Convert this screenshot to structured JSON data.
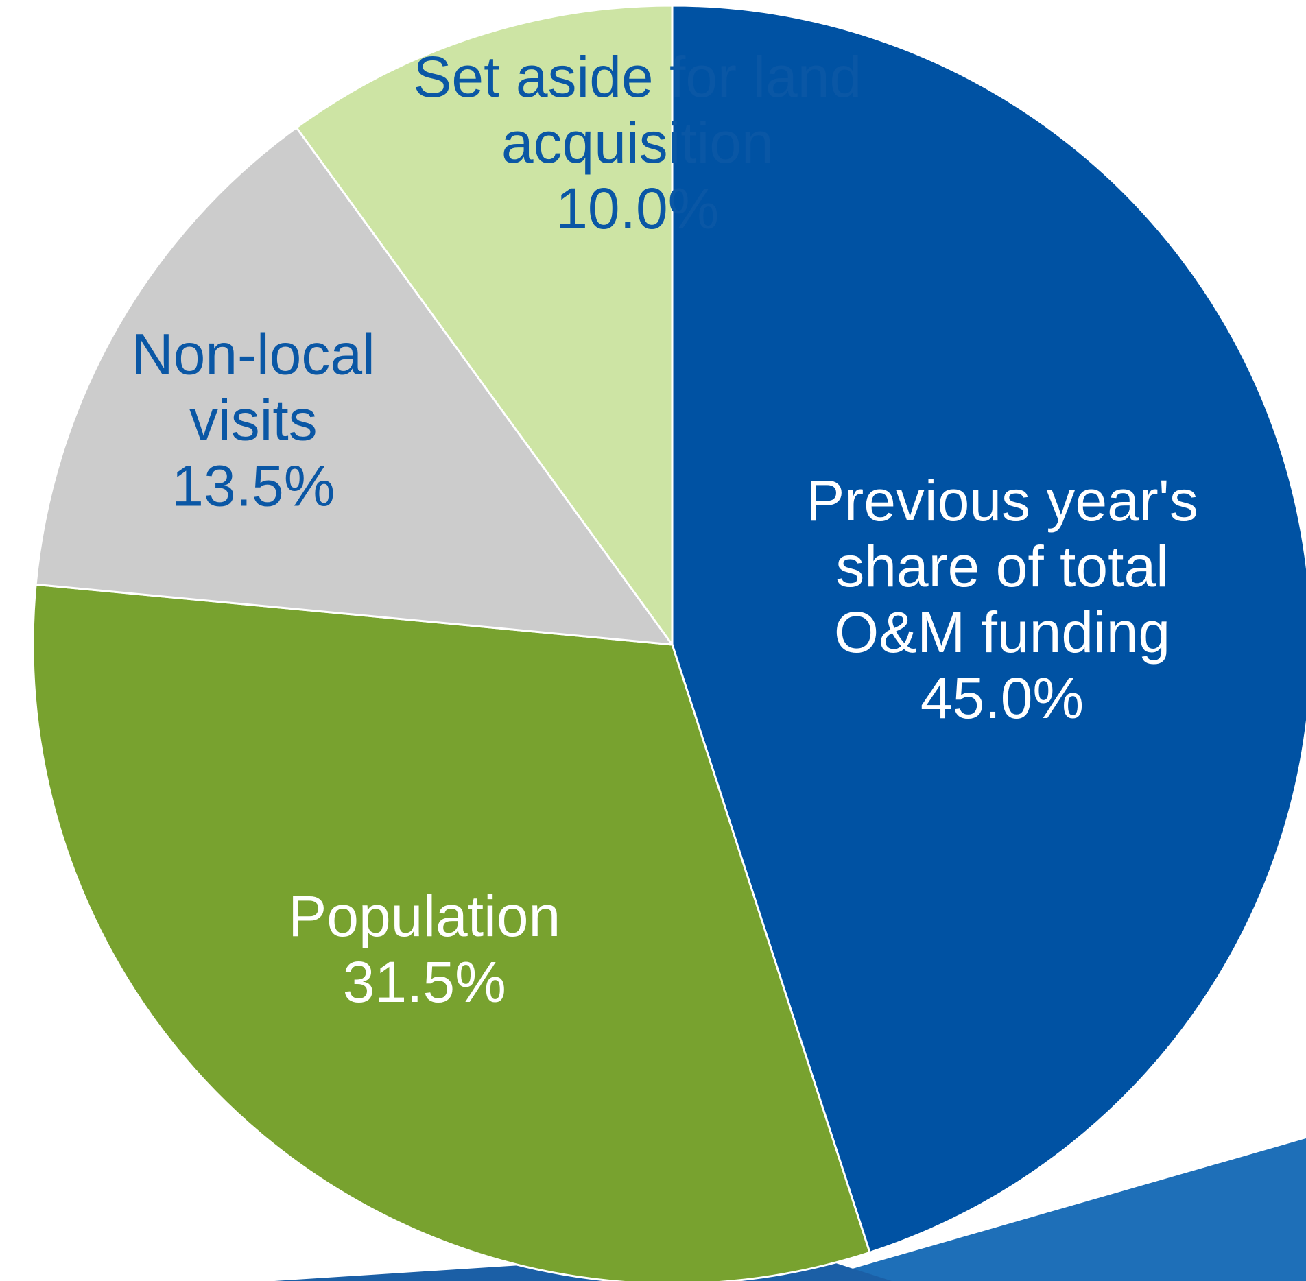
{
  "chart_data": {
    "type": "pie",
    "title": "",
    "start_angle_deg": 0,
    "direction": "clockwise",
    "slices": [
      {
        "label": "Previous year's share of total O&M funding",
        "label_lines": [
          "Previous year's",
          "share of total",
          "O&M funding"
        ],
        "value": 45.0,
        "value_label": "45.0%",
        "color": "#0052a3",
        "text_color": "#ffffff"
      },
      {
        "label": "Population",
        "label_lines": [
          "Population"
        ],
        "value": 31.5,
        "value_label": "31.5%",
        "color": "#78a22f",
        "text_color": "#ffffff"
      },
      {
        "label": "Non-local visits",
        "label_lines": [
          "Non-local",
          "visits"
        ],
        "value": 13.5,
        "value_label": "13.5%",
        "color": "#cccccc",
        "text_color": "#0a57a5"
      },
      {
        "label": "Set aside for land acquisition",
        "label_lines": [
          "Set aside for land",
          "acquisition"
        ],
        "value": 10.0,
        "value_label": "10.0%",
        "color": "#cde4a4",
        "text_color": "#0a57a5"
      }
    ],
    "legend": "none"
  },
  "colors": {
    "slice_border": "#ffffff",
    "background_swoosh": "#1e6fb8"
  }
}
